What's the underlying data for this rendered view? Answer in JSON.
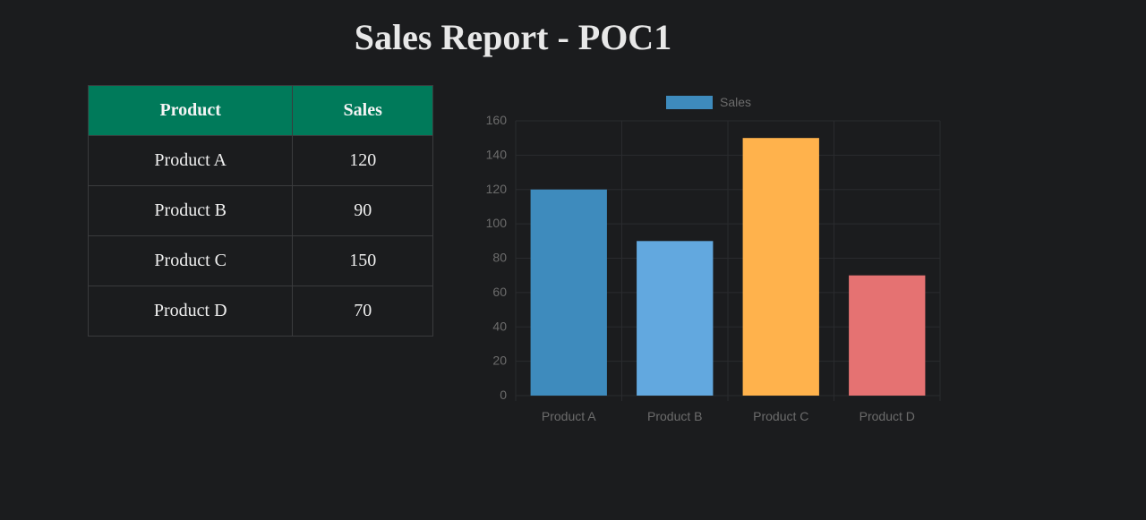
{
  "title": "Sales Report - POC1",
  "table": {
    "headers": [
      "Product",
      "Sales"
    ],
    "rows": [
      [
        "Product A",
        "120"
      ],
      [
        "Product B",
        "90"
      ],
      [
        "Product C",
        "150"
      ],
      [
        "Product D",
        "70"
      ]
    ]
  },
  "chart_data": {
    "type": "bar",
    "categories": [
      "Product A",
      "Product B",
      "Product C",
      "Product D"
    ],
    "series": [
      {
        "name": "Sales",
        "values": [
          120,
          90,
          150,
          70
        ]
      }
    ],
    "bar_colors": [
      "#3e8bbd",
      "#62a8df",
      "#ffb24c",
      "#e57272"
    ],
    "legend_color": "#3e8bbd",
    "ylim": [
      0,
      160
    ],
    "yticks": [
      0,
      20,
      40,
      60,
      80,
      100,
      120,
      140,
      160
    ],
    "grid": true,
    "legend": "top-center"
  }
}
